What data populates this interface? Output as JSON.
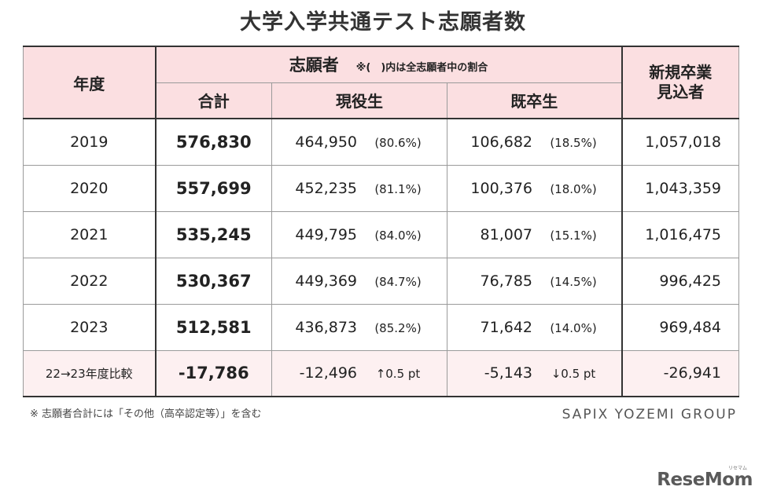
{
  "title": "大学入学共通テスト志願者数",
  "headers": {
    "year": "年度",
    "applicants": "志願者",
    "applicants_note": "※(　)内は全志願者中の割合",
    "total": "合計",
    "current": "現役生",
    "graduates": "既卒生",
    "new_grads_line1": "新規卒業",
    "new_grads_line2": "見込者"
  },
  "rows": [
    {
      "year": "2019",
      "total": "576,830",
      "current": "464,950",
      "current_pct": "(80.6%)",
      "grad": "106,682",
      "grad_pct": "(18.5%)",
      "new_grads": "1,057,018"
    },
    {
      "year": "2020",
      "total": "557,699",
      "current": "452,235",
      "current_pct": "(81.1%)",
      "grad": "100,376",
      "grad_pct": "(18.0%)",
      "new_grads": "1,043,359"
    },
    {
      "year": "2021",
      "total": "535,245",
      "current": "449,795",
      "current_pct": "(84.0%)",
      "grad": "81,007",
      "grad_pct": "(15.1%)",
      "new_grads": "1,016,475"
    },
    {
      "year": "2022",
      "total": "530,367",
      "current": "449,369",
      "current_pct": "(84.7%)",
      "grad": "76,785",
      "grad_pct": "(14.5%)",
      "new_grads": "996,425"
    },
    {
      "year": "2023",
      "total": "512,581",
      "current": "436,873",
      "current_pct": "(85.2%)",
      "grad": "71,642",
      "grad_pct": "(14.0%)",
      "new_grads": "969,484"
    }
  ],
  "diff": {
    "label": "22→23年度比較",
    "total": "-17,786",
    "current": "-12,496",
    "current_change": "↑0.5 pt",
    "grad": "-5,143",
    "grad_change": "↓0.5 pt",
    "new_grads": "-26,941"
  },
  "footnote": "※ 志願者合計には「その他（高卒認定等）」を含む",
  "group": "SAPIX YOZEMI GROUP",
  "brand": "ReseMom",
  "brand_sub": "リセマム",
  "colors": {
    "header_bg": "#fbdfe1",
    "diff_bg": "#fdf0f1",
    "border": "#9a9a9a"
  }
}
